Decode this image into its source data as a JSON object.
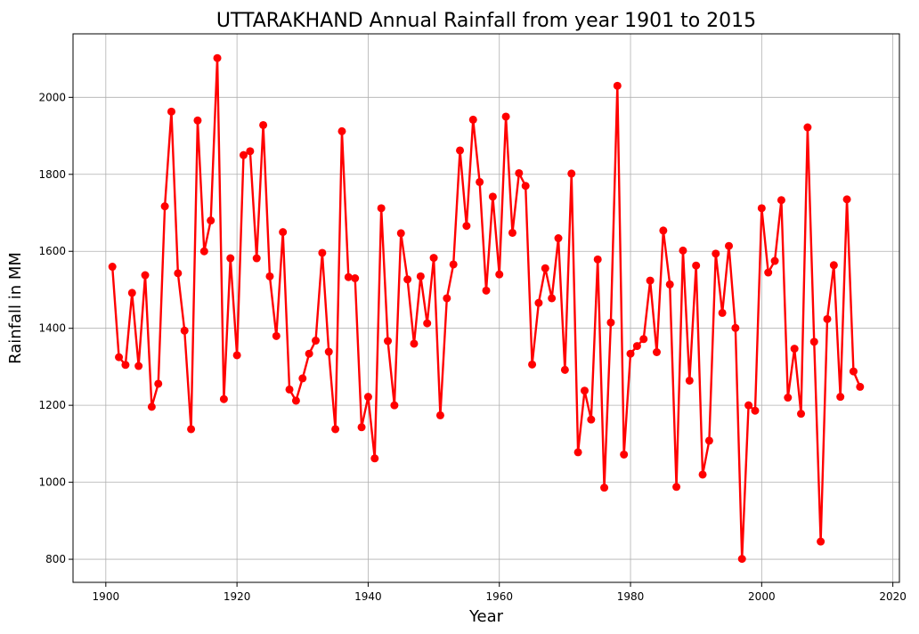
{
  "chart_data": {
    "type": "line",
    "title": "UTTARAKHAND Annual Rainfall from year 1901 to 2015",
    "xlabel": "Year",
    "ylabel": "Rainfall in MM",
    "xlim": [
      1895,
      2021
    ],
    "ylim": [
      740,
      2165
    ],
    "xticks": [
      1900,
      1920,
      1940,
      1960,
      1980,
      2000,
      2020
    ],
    "yticks": [
      800,
      1000,
      1200,
      1400,
      1600,
      1800,
      2000
    ],
    "grid": true,
    "series": [
      {
        "color": "#ff0000",
        "marker": "circle",
        "x": [
          1901,
          1902,
          1903,
          1904,
          1905,
          1906,
          1907,
          1908,
          1909,
          1910,
          1911,
          1912,
          1913,
          1914,
          1915,
          1916,
          1917,
          1918,
          1919,
          1920,
          1921,
          1922,
          1923,
          1924,
          1925,
          1926,
          1927,
          1928,
          1929,
          1930,
          1931,
          1932,
          1933,
          1934,
          1935,
          1936,
          1937,
          1938,
          1939,
          1940,
          1941,
          1942,
          1943,
          1944,
          1945,
          1946,
          1947,
          1948,
          1949,
          1950,
          1951,
          1952,
          1953,
          1954,
          1955,
          1956,
          1957,
          1958,
          1959,
          1960,
          1961,
          1962,
          1963,
          1964,
          1965,
          1966,
          1967,
          1968,
          1969,
          1970,
          1971,
          1972,
          1973,
          1974,
          1975,
          1976,
          1977,
          1978,
          1979,
          1980,
          1981,
          1982,
          1983,
          1984,
          1985,
          1986,
          1987,
          1988,
          1989,
          1990,
          1991,
          1992,
          1993,
          1994,
          1995,
          1996,
          1997,
          1998,
          1999,
          2000,
          2001,
          2002,
          2003,
          2004,
          2005,
          2006,
          2007,
          2008,
          2009,
          2010,
          2011,
          2012,
          2013,
          2014,
          2015
        ],
        "y": [
          1560,
          1325,
          1305,
          1492,
          1302,
          1538,
          1196,
          1256,
          1717,
          1963,
          1543,
          1394,
          1138,
          1940,
          1600,
          1680,
          2102,
          1216,
          1582,
          1330,
          1850,
          1860,
          1582,
          1928,
          1535,
          1380,
          1650,
          1241,
          1212,
          1270,
          1334,
          1368,
          1596,
          1339,
          1138,
          1912,
          1533,
          1530,
          1143,
          1222,
          1062,
          1712,
          1367,
          1200,
          1647,
          1527,
          1360,
          1535,
          1413,
          1583,
          1174,
          1478,
          1566,
          1862,
          1666,
          1942,
          1780,
          1498,
          1742,
          1540,
          1950,
          1648,
          1803,
          1770,
          1306,
          1466,
          1556,
          1478,
          1634,
          1292,
          1802,
          1078,
          1238,
          1163,
          1579,
          986,
          1415,
          2030,
          1072,
          1334,
          1354,
          1372,
          1524,
          1338,
          1654,
          1514,
          988,
          1602,
          1264,
          1563,
          1020,
          1108,
          1594,
          1440,
          1614,
          1401,
          801,
          1200,
          1186,
          1712,
          1545,
          1575,
          1733,
          1220,
          1347,
          1178,
          1922,
          1365,
          846,
          1424,
          1564,
          1222,
          1735,
          1288,
          1248
        ]
      }
    ]
  }
}
